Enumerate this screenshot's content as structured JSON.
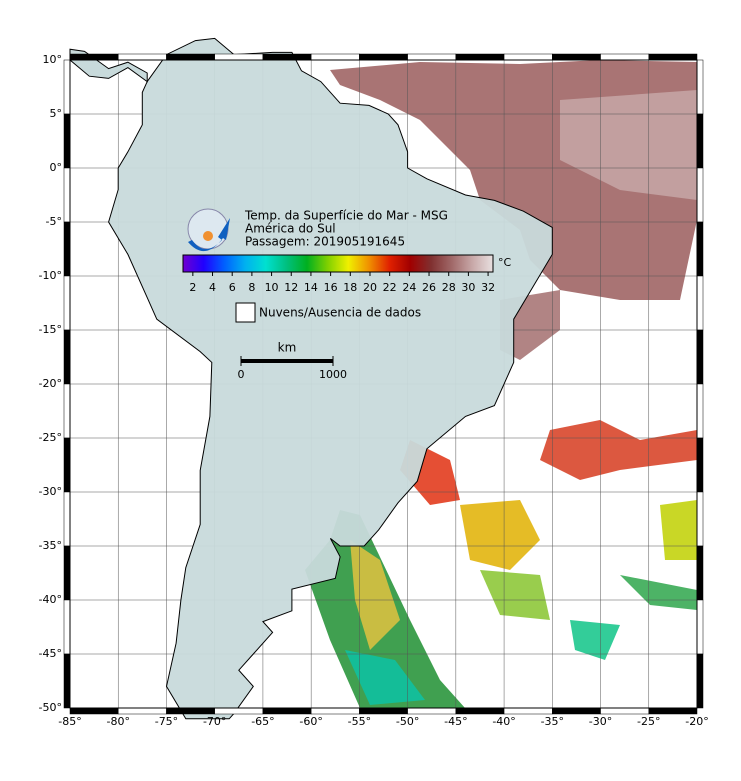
{
  "map": {
    "title": "Temp. da Superfície do Mar - MSG",
    "region": "América do Sul",
    "pass": "Passagem: 201905191645",
    "axes": {
      "xlim": [
        -85,
        -20
      ],
      "ylim": [
        -50,
        10
      ],
      "xticks": [
        {
          "value": -85,
          "label": "-85°"
        },
        {
          "value": -80,
          "label": "-80°"
        },
        {
          "value": -75,
          "label": "-75°"
        },
        {
          "value": -70,
          "label": "-70°"
        },
        {
          "value": -65,
          "label": "-65°"
        },
        {
          "value": -60,
          "label": "-60°"
        },
        {
          "value": -55,
          "label": "-55°"
        },
        {
          "value": -50,
          "label": "-50°"
        },
        {
          "value": -45,
          "label": "-45°"
        },
        {
          "value": -40,
          "label": "-40°"
        },
        {
          "value": -35,
          "label": "-35°"
        },
        {
          "value": -30,
          "label": "-30°"
        },
        {
          "value": -25,
          "label": "-25°"
        },
        {
          "value": -20,
          "label": "-20°"
        }
      ],
      "yticks": [
        {
          "value": 10,
          "label": "10°"
        },
        {
          "value": 5,
          "label": "5°"
        },
        {
          "value": 0,
          "label": "0°"
        },
        {
          "value": -5,
          "label": "-5°"
        },
        {
          "value": -10,
          "label": "-10°"
        },
        {
          "value": -15,
          "label": "-15°"
        },
        {
          "value": -20,
          "label": "-20°"
        },
        {
          "value": -25,
          "label": "-25°"
        },
        {
          "value": -30,
          "label": "-30°"
        },
        {
          "value": -35,
          "label": "-35°"
        },
        {
          "value": -40,
          "label": "-40°"
        },
        {
          "value": -45,
          "label": "-45°"
        },
        {
          "value": -50,
          "label": "-50°"
        }
      ],
      "grid": true
    },
    "colorbar": {
      "unit": "°C",
      "lim": [
        1,
        32.5
      ],
      "ticks": [
        2,
        4,
        6,
        8,
        10,
        12,
        14,
        16,
        18,
        20,
        22,
        24,
        26,
        28,
        30,
        32
      ],
      "colors": [
        "#7000d0",
        "#2000ff",
        "#0060ff",
        "#00b0f0",
        "#00e0d0",
        "#00c080",
        "#00b020",
        "#80d000",
        "#f0f000",
        "#f09000",
        "#e02000",
        "#a00000",
        "#803030",
        "#a06868",
        "#c8a8a8",
        "#e8e0e0"
      ]
    },
    "legend": {
      "label": "Nuvens/Ausencia de dados"
    },
    "scale_bar": {
      "unit": "km",
      "ticks": [
        0,
        1000
      ]
    }
  }
}
